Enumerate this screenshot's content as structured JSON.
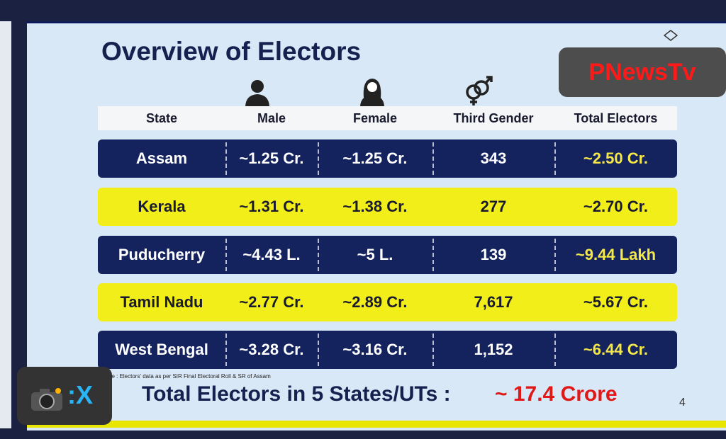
{
  "title": "Overview of Electors",
  "watermark": "PNewsTv",
  "table": {
    "header": [
      "State",
      "Male",
      "Female",
      "Third Gender",
      "Total Electors"
    ],
    "rows": [
      [
        "Assam",
        "~1.25 Cr.",
        "~1.25 Cr.",
        "343",
        "~2.50 Cr."
      ],
      [
        "Kerala",
        "~1.31 Cr.",
        "~1.38 Cr.",
        "277",
        "~2.70 Cr."
      ],
      [
        "Puducherry",
        "~4.43 L.",
        "~5 L.",
        "139",
        "~9.44 Lakh"
      ],
      [
        "Tamil Nadu",
        "~2.77 Cr.",
        "~2.89 Cr.",
        "7,617",
        "~5.67 Cr."
      ],
      [
        "West Bengal",
        "~3.28 Cr.",
        "~3.16 Cr.",
        "1,152",
        "~6.44 Cr."
      ]
    ]
  },
  "note": "Note : Electors' data as per SIR Final Electoral Roll & SR of Assam",
  "total_label": "Total Electors in 5 States/UTs :",
  "total_value": "~ 17.4 Crore",
  "page_number": "4",
  "badge": ":X"
}
